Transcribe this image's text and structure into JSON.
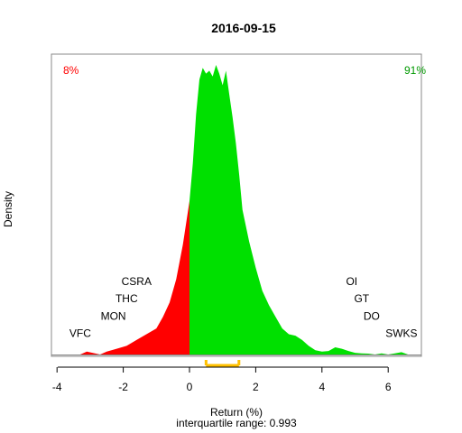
{
  "chart_data": {
    "type": "area",
    "title": "2016-09-15",
    "xlabel": "Return (%)",
    "ylabel": "Density",
    "subtitle": "interquartile range: 0.993",
    "xlim": [
      -4.2,
      7.3
    ],
    "ylim": [
      0,
      1
    ],
    "x_ticks": [
      "-4",
      "-2",
      "0",
      "2",
      "4",
      "6"
    ],
    "negative_pct": "8%",
    "positive_pct": "91%",
    "colors": {
      "negative": "#ff0000",
      "positive": "#00e000",
      "iqr": "#ffc000",
      "axis": "#000000",
      "box": "#888888"
    },
    "density": {
      "x": [
        -3.3,
        -3.1,
        -2.9,
        -2.7,
        -2.5,
        -2.2,
        -1.9,
        -1.6,
        -1.3,
        -1.0,
        -0.8,
        -0.6,
        -0.4,
        -0.2,
        0.0,
        0.1,
        0.2,
        0.3,
        0.4,
        0.5,
        0.6,
        0.7,
        0.8,
        0.9,
        1.0,
        1.1,
        1.2,
        1.3,
        1.4,
        1.5,
        1.6,
        1.8,
        2.0,
        2.2,
        2.4,
        2.6,
        2.8,
        3.0,
        3.2,
        3.4,
        3.6,
        3.8,
        4.0,
        4.2,
        4.4,
        4.6,
        4.8,
        5.0,
        5.2,
        5.4,
        5.6,
        5.8,
        6.0,
        6.2,
        6.4,
        6.6
      ],
      "y": [
        0.0,
        0.01,
        0.005,
        0.0,
        0.01,
        0.02,
        0.03,
        0.05,
        0.07,
        0.09,
        0.13,
        0.18,
        0.26,
        0.38,
        0.53,
        0.66,
        0.83,
        0.95,
        0.99,
        0.97,
        0.98,
        0.96,
        1.0,
        0.97,
        0.93,
        0.98,
        0.9,
        0.82,
        0.73,
        0.62,
        0.5,
        0.39,
        0.3,
        0.22,
        0.17,
        0.13,
        0.09,
        0.07,
        0.065,
        0.05,
        0.03,
        0.015,
        0.01,
        0.012,
        0.025,
        0.02,
        0.012,
        0.006,
        0.004,
        0.003,
        0.0,
        0.004,
        0.0,
        0.004,
        0.008,
        0.0
      ]
    },
    "iqr": [
      0.5,
      1.493
    ],
    "annotations": [
      {
        "text": "CSRA",
        "x": -1.6,
        "y": 0.24
      },
      {
        "text": "THC",
        "x": -1.9,
        "y": 0.18
      },
      {
        "text": "MON",
        "x": -2.3,
        "y": 0.12
      },
      {
        "text": "VFC",
        "x": -3.3,
        "y": 0.06
      },
      {
        "text": "OI",
        "x": 4.9,
        "y": 0.24
      },
      {
        "text": "GT",
        "x": 5.2,
        "y": 0.18
      },
      {
        "text": "DO",
        "x": 5.5,
        "y": 0.12
      },
      {
        "text": "SWKS",
        "x": 6.4,
        "y": 0.06
      }
    ]
  }
}
